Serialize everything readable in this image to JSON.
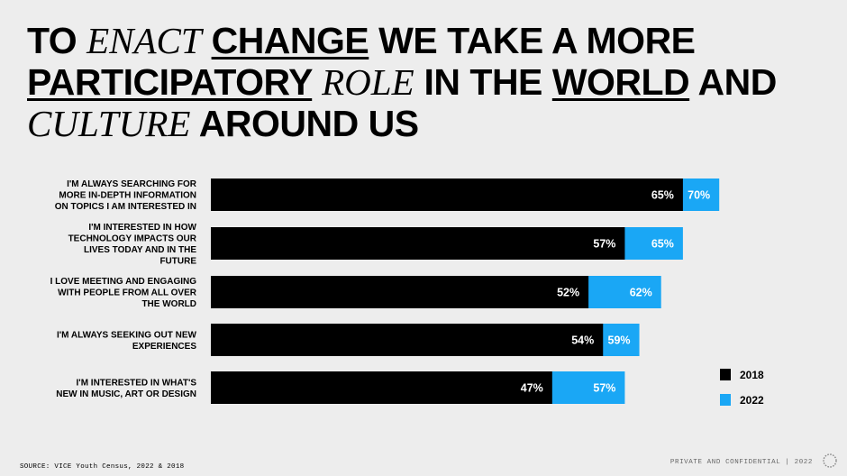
{
  "headline": {
    "w1": "TO ",
    "w2": "ENACT",
    "w3": " ",
    "w4": "CHANGE",
    "w5": " WE TAKE A MORE ",
    "w6": "PARTICIPATORY",
    "w7": " ",
    "w8": "ROLE",
    "w9": " IN THE ",
    "w10": "WORLD",
    "w11": " AND ",
    "w12": "CULTURE",
    "w13": " AROUND US"
  },
  "footer": {
    "source": "SOURCE: VICE Youth Census, 2022 & 2018",
    "confidential": "PRIVATE AND CONFIDENTIAL | 2022",
    "logo_icon": "vice-circle-logo-icon"
  },
  "colors": {
    "series_2018": "#000000",
    "series_2022": "#1aa7f5",
    "background": "#ededed"
  },
  "chart_data": {
    "type": "bar",
    "orientation": "horizontal",
    "stacked": false,
    "overlapping": true,
    "title": "",
    "xlabel": "",
    "ylabel": "",
    "xlim": [
      0,
      100
    ],
    "grid": false,
    "legend_position": "bottom-right",
    "categories": [
      [
        "I'M ALWAYS SEARCHING FOR",
        "MORE IN-DEPTH INFORMATION",
        "ON TOPICS I AM INTERESTED IN"
      ],
      [
        "I'M INTERESTED IN HOW",
        "TECHNOLOGY IMPACTS OUR",
        "LIVES TODAY AND IN THE",
        "FUTURE"
      ],
      [
        "I LOVE MEETING AND ENGAGING",
        "WITH PEOPLE FROM ALL OVER",
        "THE WORLD"
      ],
      [
        "I'M ALWAYS SEEKING OUT NEW",
        "EXPERIENCES"
      ],
      [
        "I'M INTERESTED IN WHAT'S",
        "NEW IN MUSIC, ART OR DESIGN"
      ]
    ],
    "series": [
      {
        "name": "2018",
        "values": [
          65,
          57,
          52,
          54,
          47
        ],
        "labels": [
          "65%",
          "57%",
          "52%",
          "54%",
          "47%"
        ]
      },
      {
        "name": "2022",
        "values": [
          70,
          65,
          62,
          59,
          57
        ],
        "labels": [
          "70%",
          "65%",
          "62%",
          "59%",
          "57%"
        ]
      }
    ]
  }
}
